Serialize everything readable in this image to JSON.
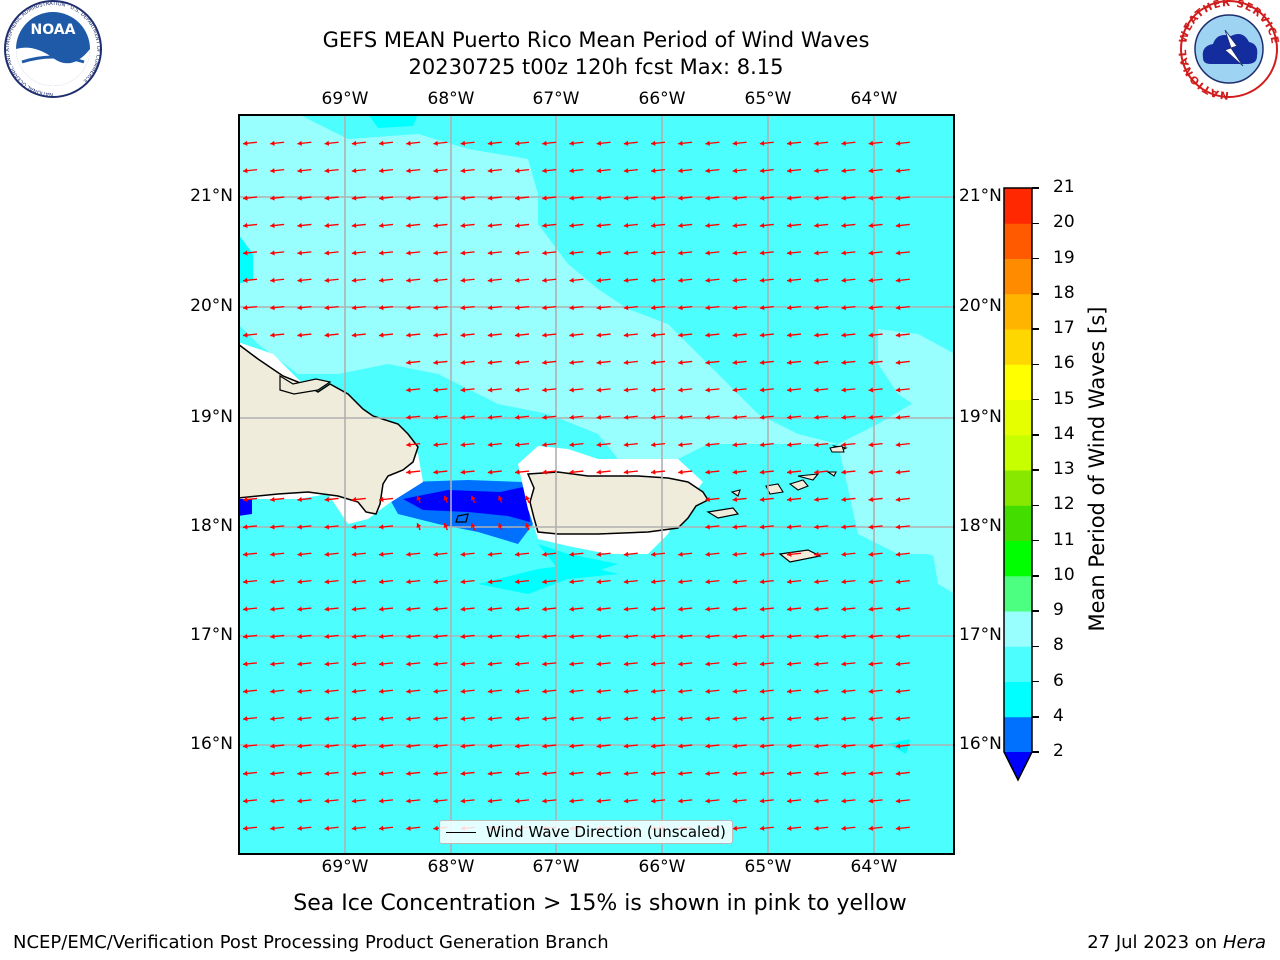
{
  "header": {
    "title_line1": "GEFS MEAN Puerto Rico Mean Period of Wind Waves",
    "title_line2": "20230725 t00z 120h fcst   Max: 8.15"
  },
  "logos": {
    "left": "NOAA",
    "left_ring": "NATIONAL OCEANIC AND ATMOSPHERIC ADMINISTRATION · U.S. DEPARTMENT OF COMMERCE",
    "right_ring": "NATIONAL WEATHER SERVICE"
  },
  "map": {
    "lon_labels": [
      "69°W",
      "68°W",
      "67°W",
      "66°W",
      "65°W",
      "64°W"
    ],
    "lat_labels": [
      "21°N",
      "20°N",
      "19°N",
      "18°N",
      "17°N",
      "16°N"
    ],
    "legend_label": "Wind Wave Direction (unscaled)",
    "arrow_color": "#ff0000",
    "land_color": "#efecdc",
    "colors": {
      "band_4_6": "#00ffff",
      "band_6_8": "#4cfefe",
      "band_8_9": "#99fefe",
      "band_2_4": "#0071ff",
      "below_2": "#0000ff"
    }
  },
  "colorbar": {
    "label": "Mean Period of Wind Waves [s]",
    "ticks": [
      "2",
      "4",
      "6",
      "8",
      "9",
      "10",
      "11",
      "12",
      "13",
      "14",
      "15",
      "16",
      "17",
      "18",
      "19",
      "20",
      "21"
    ],
    "colors": [
      "#0071ff",
      "#00ffff",
      "#4cfefe",
      "#99fefe",
      "#4cff80",
      "#00ff00",
      "#44dd00",
      "#88e800",
      "#c8ff00",
      "#e6ff00",
      "#ffff00",
      "#ffd700",
      "#ffb400",
      "#ff8c00",
      "#ff5a00",
      "#ff2800",
      "#ff0000"
    ],
    "extend_color": "#0000ff"
  },
  "annotation": "Sea Ice Concentration > 15% is shown in pink to yellow",
  "footer": {
    "left": "NCEP/EMC/Verification Post Processing Product Generation Branch",
    "right_date": "27 Jul 2023 on ",
    "right_host": "Hera"
  }
}
